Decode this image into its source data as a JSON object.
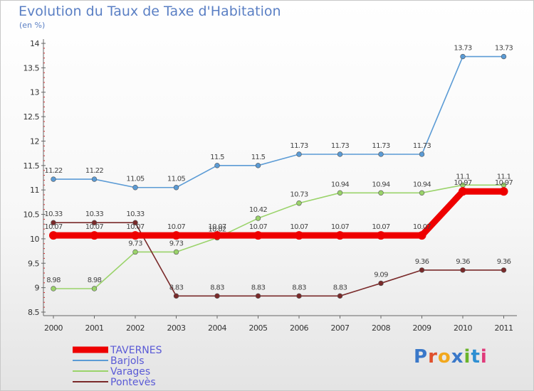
{
  "header": {
    "title": "Evolution du Taux de Taxe d'Habitation",
    "subtitle": "(en %)"
  },
  "logo": {
    "text": "Proxiti",
    "colors": [
      "#3a78c9",
      "#e0502c",
      "#f2a81d",
      "#3a78c9",
      "#6ab42a",
      "#2e8fd2",
      "#e03a7a"
    ]
  },
  "chart_data": {
    "type": "line",
    "x": [
      "2000",
      "2001",
      "2002",
      "2003",
      "2004",
      "2005",
      "2006",
      "2007",
      "2008",
      "2009",
      "2010",
      "2011"
    ],
    "ylim": [
      8.5,
      14
    ],
    "yticks": [
      "8.5",
      "9",
      "9.5",
      "10",
      "10.5",
      "11",
      "11.5",
      "12",
      "12.5",
      "13",
      "13.5",
      "14"
    ],
    "grid": false,
    "legend_position": "bottom-left",
    "series": [
      {
        "name": "TAVERNES",
        "color": "#ee0000",
        "values": [
          10.07,
          10.07,
          10.07,
          10.07,
          10.07,
          10.07,
          10.07,
          10.07,
          10.07,
          10.07,
          10.97,
          10.97
        ],
        "labels": [
          "10.07",
          "10.07",
          "10.07",
          "10.07",
          "10.07",
          "10.07",
          "10.07",
          "10.07",
          "10.07",
          "10.07",
          "10.97",
          "10.97"
        ]
      },
      {
        "name": "Barjols",
        "color": "#5b9bd5",
        "values": [
          11.22,
          11.22,
          11.05,
          11.05,
          11.5,
          11.5,
          11.73,
          11.73,
          11.73,
          11.73,
          13.73,
          13.73
        ],
        "labels": [
          "11.22",
          "11.22",
          "11.05",
          "11.05",
          "11.5",
          "11.5",
          "11.73",
          "11.73",
          "11.73",
          "11.73",
          "13.73",
          "13.73"
        ]
      },
      {
        "name": "Varages",
        "color": "#9ad36a",
        "values": [
          8.98,
          8.98,
          9.73,
          9.73,
          10.02,
          10.42,
          10.73,
          10.94,
          10.94,
          10.94,
          11.1,
          11.1
        ],
        "labels": [
          "8.98",
          "8.98",
          "9.73",
          "9.73",
          "10.02",
          "10.42",
          "10.73",
          "10.94",
          "10.94",
          "10.94",
          "11.1",
          "11.1"
        ]
      },
      {
        "name": "Pontevès",
        "color": "#7a2a2a",
        "values": [
          10.33,
          10.33,
          10.33,
          8.83,
          8.83,
          8.83,
          8.83,
          8.83,
          9.09,
          9.36,
          9.36,
          9.36
        ],
        "labels": [
          "10.33",
          "10.33",
          "10.33",
          "8.83",
          "8.83",
          "8.83",
          "8.83",
          "8.83",
          "9.09",
          "9.36",
          "9.36",
          "9.36"
        ]
      }
    ]
  }
}
